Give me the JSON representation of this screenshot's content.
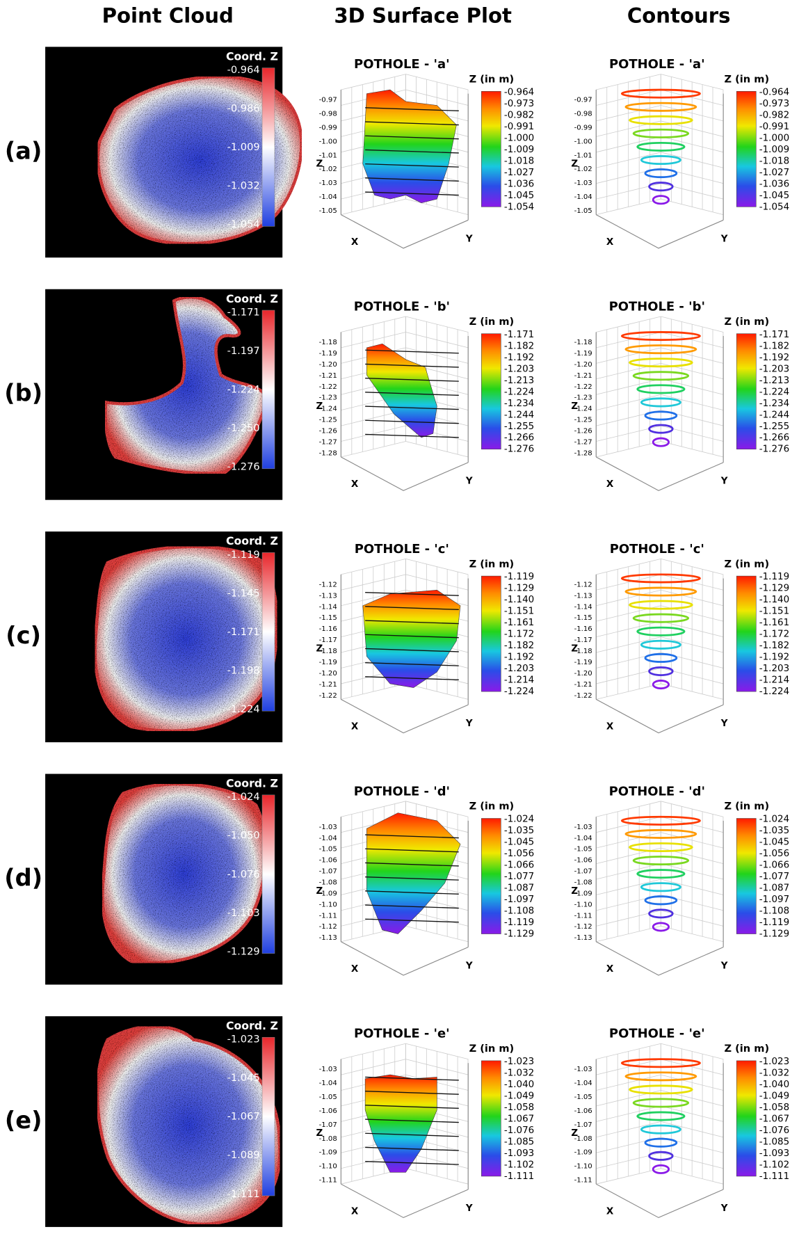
{
  "headers": [
    "Point Cloud",
    "3D Surface Plot",
    "Contours"
  ],
  "rows": [
    {
      "label": "(a)",
      "point_cloud": {
        "colorbar_title": "Coord. Z",
        "ticks": [
          "-0.964",
          "-0.986",
          "-1.009",
          "-1.032",
          "-1.054"
        ]
      },
      "surface": {
        "title": "POTHOLE - 'a'",
        "colorbar_title": "Z (in m)",
        "colorbar_ticks": [
          "-0.964",
          "-0.973",
          "-0.982",
          "-0.991",
          "-1.000",
          "-1.009",
          "-1.018",
          "-1.027",
          "-1.036",
          "-1.045",
          "-1.054"
        ],
        "z_ticks": [
          "-0.97",
          "-0.98",
          "-0.99",
          "-1.00",
          "-1.01",
          "-1.02",
          "-1.03",
          "-1.04",
          "-1.05"
        ],
        "x_label": "X",
        "y_label": "Y",
        "z_label": "Z"
      },
      "contours": {
        "title": "POTHOLE - 'a'",
        "colorbar_title": "Z (in m)",
        "colorbar_ticks": [
          "-0.964",
          "-0.973",
          "-0.982",
          "-0.991",
          "-1.000",
          "-1.009",
          "-1.018",
          "-1.027",
          "-1.036",
          "-1.045",
          "-1.054"
        ],
        "z_ticks": [
          "-0.97",
          "-0.98",
          "-0.99",
          "-1.00",
          "-1.01",
          "-1.02",
          "-1.03",
          "-1.04",
          "-1.05"
        ],
        "x_label": "X",
        "y_label": "Y",
        "z_label": "Z"
      }
    },
    {
      "label": "(b)",
      "point_cloud": {
        "colorbar_title": "Coord. Z",
        "ticks": [
          "-1.171",
          "-1.197",
          "-1.224",
          "-1.250",
          "-1.276"
        ]
      },
      "surface": {
        "title": "POTHOLE - 'b'",
        "colorbar_title": "Z (in m)",
        "colorbar_ticks": [
          "-1.171",
          "-1.182",
          "-1.192",
          "-1.203",
          "-1.213",
          "-1.224",
          "-1.234",
          "-1.244",
          "-1.255",
          "-1.266",
          "-1.276"
        ],
        "z_ticks": [
          "-1.18",
          "-1.19",
          "-1.20",
          "-1.21",
          "-1.22",
          "-1.23",
          "-1.24",
          "-1.25",
          "-1.26",
          "-1.27",
          "-1.28"
        ],
        "x_label": "X",
        "y_label": "Y",
        "z_label": "Z"
      },
      "contours": {
        "title": "POTHOLE - 'b'",
        "colorbar_title": "Z (in m)",
        "colorbar_ticks": [
          "-1.171",
          "-1.182",
          "-1.192",
          "-1.203",
          "-1.213",
          "-1.224",
          "-1.234",
          "-1.244",
          "-1.255",
          "-1.266",
          "-1.276"
        ],
        "z_ticks": [
          "-1.18",
          "-1.19",
          "-1.20",
          "-1.21",
          "-1.22",
          "-1.23",
          "-1.24",
          "-1.25",
          "-1.26",
          "-1.27",
          "-1.28"
        ],
        "x_label": "X",
        "y_label": "Y",
        "z_label": "Z"
      }
    },
    {
      "label": "(c)",
      "point_cloud": {
        "colorbar_title": "Coord. Z",
        "ticks": [
          "-1.119",
          "-1.145",
          "-1.171",
          "-1.198",
          "-1.224"
        ]
      },
      "surface": {
        "title": "POTHOLE - 'c'",
        "colorbar_title": "Z (in m)",
        "colorbar_ticks": [
          "-1.119",
          "-1.129",
          "-1.140",
          "-1.151",
          "-1.161",
          "-1.172",
          "-1.182",
          "-1.192",
          "-1.203",
          "-1.214",
          "-1.224"
        ],
        "z_ticks": [
          "-1.12",
          "-1.13",
          "-1.14",
          "-1.15",
          "-1.16",
          "-1.17",
          "-1.18",
          "-1.19",
          "-1.20",
          "-1.21",
          "-1.22"
        ],
        "x_label": "X",
        "y_label": "Y",
        "z_label": "Z"
      },
      "contours": {
        "title": "POTHOLE - 'c'",
        "colorbar_title": "Z (in m)",
        "colorbar_ticks": [
          "-1.119",
          "-1.129",
          "-1.140",
          "-1.151",
          "-1.161",
          "-1.172",
          "-1.182",
          "-1.192",
          "-1.203",
          "-1.214",
          "-1.224"
        ],
        "z_ticks": [
          "-1.12",
          "-1.13",
          "-1.14",
          "-1.15",
          "-1.16",
          "-1.17",
          "-1.18",
          "-1.19",
          "-1.20",
          "-1.21",
          "-1.22"
        ],
        "x_label": "X",
        "y_label": "Y",
        "z_label": "Z"
      }
    },
    {
      "label": "(d)",
      "point_cloud": {
        "colorbar_title": "Coord. Z",
        "ticks": [
          "-1.024",
          "-1.050",
          "-1.076",
          "-1.103",
          "-1.129"
        ]
      },
      "surface": {
        "title": "POTHOLE - 'd'",
        "colorbar_title": "Z (in m)",
        "colorbar_ticks": [
          "-1.024",
          "-1.035",
          "-1.045",
          "-1.056",
          "-1.066",
          "-1.077",
          "-1.087",
          "-1.097",
          "-1.108",
          "-1.119",
          "-1.129"
        ],
        "z_ticks": [
          "-1.03",
          "-1.04",
          "-1.05",
          "-1.06",
          "-1.07",
          "-1.08",
          "-1.09",
          "-1.10",
          "-1.11",
          "-1.12",
          "-1.13"
        ],
        "x_label": "X",
        "y_label": "Y",
        "z_label": "Z"
      },
      "contours": {
        "title": "POTHOLE - 'd'",
        "colorbar_title": "Z (in m)",
        "colorbar_ticks": [
          "-1.024",
          "-1.035",
          "-1.045",
          "-1.056",
          "-1.066",
          "-1.077",
          "-1.087",
          "-1.097",
          "-1.108",
          "-1.119",
          "-1.129"
        ],
        "z_ticks": [
          "-1.03",
          "-1.04",
          "-1.05",
          "-1.06",
          "-1.07",
          "-1.08",
          "-1.09",
          "-1.10",
          "-1.11",
          "-1.12",
          "-1.13"
        ],
        "x_label": "X",
        "y_label": "Y",
        "z_label": "Z"
      }
    },
    {
      "label": "(e)",
      "point_cloud": {
        "colorbar_title": "Coord. Z",
        "ticks": [
          "-1.023",
          "-1.045",
          "-1.067",
          "-1.089",
          "-1.111"
        ]
      },
      "surface": {
        "title": "POTHOLE - 'e'",
        "colorbar_title": "Z (in m)",
        "colorbar_ticks": [
          "-1.023",
          "-1.032",
          "-1.040",
          "-1.049",
          "-1.058",
          "-1.067",
          "-1.076",
          "-1.085",
          "-1.093",
          "-1.102",
          "-1.111"
        ],
        "z_ticks": [
          "-1.03",
          "-1.04",
          "-1.05",
          "-1.06",
          "-1.07",
          "-1.08",
          "-1.09",
          "-1.10",
          "-1.11"
        ],
        "x_label": "X",
        "y_label": "Y",
        "z_label": "Z"
      },
      "contours": {
        "title": "POTHOLE - 'e'",
        "colorbar_title": "Z (in m)",
        "colorbar_ticks": [
          "-1.023",
          "-1.032",
          "-1.040",
          "-1.049",
          "-1.058",
          "-1.067",
          "-1.076",
          "-1.085",
          "-1.093",
          "-1.102",
          "-1.111"
        ],
        "z_ticks": [
          "-1.03",
          "-1.04",
          "-1.05",
          "-1.06",
          "-1.07",
          "-1.08",
          "-1.09",
          "-1.10",
          "-1.11"
        ],
        "x_label": "X",
        "y_label": "Y",
        "z_label": "Z"
      }
    }
  ]
}
